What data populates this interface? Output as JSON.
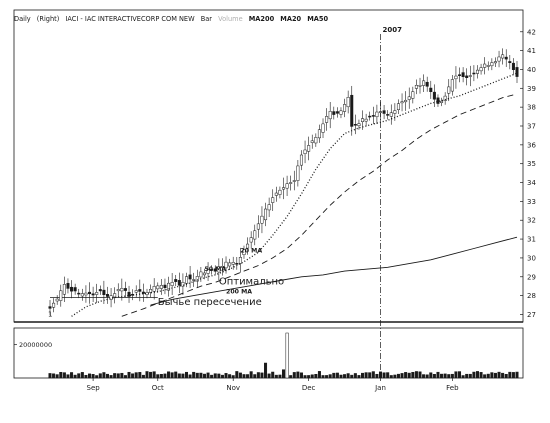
{
  "header": {
    "period": "Daily",
    "scale": "(Right)",
    "symbol": "IACI - IAC INTERACTIVECORP COM NEW",
    "style": "Bar",
    "volume_label": "Volume",
    "ma_labels": [
      "MA200",
      "MA20",
      "MA50"
    ]
  },
  "colors": {
    "background": "#ffffff",
    "ink": "#1a1a1a",
    "faded": "#9a9a9a",
    "grid": "#cfcfcf"
  },
  "chart_data": {
    "type": "line",
    "price_axis": {
      "position": "right",
      "ylim": [
        26.6,
        42.2
      ],
      "ticks": [
        27,
        28,
        29,
        30,
        31,
        32,
        33,
        34,
        35,
        36,
        37,
        38,
        39,
        40,
        41,
        42
      ]
    },
    "volume_axis": {
      "ylim": [
        0,
        30000000
      ],
      "ticks": [
        20000000
      ],
      "tick_labels": [
        "20000000"
      ]
    },
    "time_axis": {
      "range": [
        0,
        130
      ],
      "months": [
        {
          "label": "Sep",
          "x": 12
        },
        {
          "label": "Oct",
          "x": 30
        },
        {
          "label": "Nov",
          "x": 51
        },
        {
          "label": "Dec",
          "x": 72
        },
        {
          "label": "Jan",
          "x": 92
        },
        {
          "label": "Feb",
          "x": 112
        }
      ]
    },
    "year_marker": {
      "label": "2007",
      "x": 92
    },
    "baseline_level": 27.9,
    "price": [
      [
        0,
        27.4
      ],
      [
        2,
        27.8
      ],
      [
        4,
        28.6
      ],
      [
        6,
        28.3
      ],
      [
        8,
        28.0
      ],
      [
        10,
        28.2
      ],
      [
        12,
        28.1
      ],
      [
        14,
        28.3
      ],
      [
        16,
        27.9
      ],
      [
        18,
        28.2
      ],
      [
        20,
        28.4
      ],
      [
        22,
        28.0
      ],
      [
        24,
        28.2
      ],
      [
        26,
        28.1
      ],
      [
        28,
        28.3
      ],
      [
        30,
        28.5
      ],
      [
        32,
        28.4
      ],
      [
        34,
        28.8
      ],
      [
        36,
        28.6
      ],
      [
        38,
        29.0
      ],
      [
        40,
        28.9
      ],
      [
        42,
        29.2
      ],
      [
        44,
        29.4
      ],
      [
        46,
        29.3
      ],
      [
        48,
        29.6
      ],
      [
        50,
        29.8
      ],
      [
        52,
        29.7
      ],
      [
        54,
        30.4
      ],
      [
        56,
        31.0
      ],
      [
        58,
        31.8
      ],
      [
        60,
        32.5
      ],
      [
        62,
        33.2
      ],
      [
        64,
        33.6
      ],
      [
        66,
        34.0
      ],
      [
        68,
        34.2
      ],
      [
        70,
        35.5
      ],
      [
        72,
        36.0
      ],
      [
        74,
        36.4
      ],
      [
        76,
        37.2
      ],
      [
        78,
        37.8
      ],
      [
        80,
        37.6
      ],
      [
        82,
        38.1
      ],
      [
        83,
        38.5
      ],
      [
        84,
        37.0
      ],
      [
        86,
        37.2
      ],
      [
        88,
        37.4
      ],
      [
        90,
        37.6
      ],
      [
        92,
        37.8
      ],
      [
        94,
        37.5
      ],
      [
        96,
        37.9
      ],
      [
        98,
        38.3
      ],
      [
        100,
        38.6
      ],
      [
        102,
        39.1
      ],
      [
        104,
        39.4
      ],
      [
        106,
        38.8
      ],
      [
        108,
        38.2
      ],
      [
        110,
        38.6
      ],
      [
        112,
        39.4
      ],
      [
        114,
        39.8
      ],
      [
        116,
        39.6
      ],
      [
        118,
        39.9
      ],
      [
        120,
        40.1
      ],
      [
        122,
        40.3
      ],
      [
        124,
        40.5
      ],
      [
        126,
        40.7
      ],
      [
        128,
        40.3
      ],
      [
        130,
        39.7
      ]
    ],
    "series": [
      {
        "name": "20 MA",
        "style": "dotted",
        "points": [
          [
            6,
            26.9
          ],
          [
            10,
            27.4
          ],
          [
            14,
            27.7
          ],
          [
            18,
            27.9
          ],
          [
            22,
            28.0
          ],
          [
            26,
            28.1
          ],
          [
            30,
            28.2
          ],
          [
            34,
            28.4
          ],
          [
            38,
            28.6
          ],
          [
            42,
            28.9
          ],
          [
            46,
            29.1
          ],
          [
            50,
            29.4
          ],
          [
            54,
            29.8
          ],
          [
            58,
            30.3
          ],
          [
            62,
            31.2
          ],
          [
            66,
            32.2
          ],
          [
            70,
            33.4
          ],
          [
            74,
            34.7
          ],
          [
            78,
            35.8
          ],
          [
            82,
            36.6
          ],
          [
            86,
            36.9
          ],
          [
            90,
            37.1
          ],
          [
            94,
            37.3
          ],
          [
            98,
            37.6
          ],
          [
            102,
            37.9
          ],
          [
            106,
            38.2
          ],
          [
            110,
            38.4
          ],
          [
            114,
            38.6
          ],
          [
            118,
            38.9
          ],
          [
            122,
            39.2
          ],
          [
            126,
            39.5
          ],
          [
            130,
            39.8
          ]
        ]
      },
      {
        "name": "50 MA",
        "style": "dashed",
        "points": [
          [
            20,
            26.9
          ],
          [
            26,
            27.3
          ],
          [
            30,
            27.6
          ],
          [
            34,
            27.9
          ],
          [
            38,
            28.2
          ],
          [
            42,
            28.5
          ],
          [
            46,
            28.7
          ],
          [
            50,
            29.0
          ],
          [
            54,
            29.3
          ],
          [
            58,
            29.6
          ],
          [
            62,
            30.0
          ],
          [
            66,
            30.5
          ],
          [
            70,
            31.2
          ],
          [
            74,
            32.0
          ],
          [
            78,
            32.8
          ],
          [
            82,
            33.5
          ],
          [
            86,
            34.1
          ],
          [
            90,
            34.6
          ],
          [
            94,
            35.2
          ],
          [
            98,
            35.7
          ],
          [
            102,
            36.3
          ],
          [
            106,
            36.8
          ],
          [
            110,
            37.2
          ],
          [
            114,
            37.6
          ],
          [
            118,
            37.9
          ],
          [
            122,
            38.2
          ],
          [
            126,
            38.5
          ],
          [
            130,
            38.7
          ]
        ]
      },
      {
        "name": "200 MA",
        "style": "solid",
        "points": [
          [
            28,
            27.5
          ],
          [
            34,
            27.8
          ],
          [
            40,
            28.0
          ],
          [
            46,
            28.2
          ],
          [
            52,
            28.4
          ],
          [
            58,
            28.6
          ],
          [
            64,
            28.8
          ],
          [
            70,
            29.0
          ],
          [
            76,
            29.1
          ],
          [
            82,
            29.3
          ],
          [
            88,
            29.4
          ],
          [
            94,
            29.5
          ],
          [
            100,
            29.7
          ],
          [
            106,
            29.9
          ],
          [
            112,
            30.2
          ],
          [
            118,
            30.5
          ],
          [
            124,
            30.8
          ],
          [
            130,
            31.1
          ]
        ]
      }
    ],
    "ma_labels": [
      {
        "text": "20 MA",
        "x": 53,
        "y": 30.3
      },
      {
        "text": "50 MA",
        "x": 43,
        "y": 29.3
      },
      {
        "text": "200 MA",
        "x": 49,
        "y": 28.1
      }
    ],
    "annotations": [
      {
        "text": "Оптимально",
        "x": 47,
        "y": 28.6
      },
      {
        "text": "Бычье пересечение",
        "x": 30,
        "y": 27.5
      }
    ],
    "volume_spikes": [
      {
        "x": 60,
        "value": 9000000
      },
      {
        "x": 65,
        "value": 5000000
      },
      {
        "x": 66,
        "value": 27000000
      }
    ]
  }
}
